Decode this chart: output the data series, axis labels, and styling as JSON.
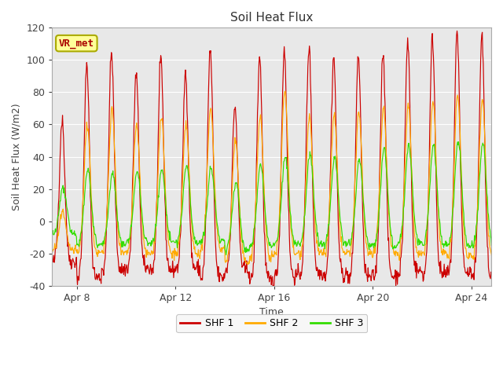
{
  "title": "Soil Heat Flux",
  "xlabel": "Time",
  "ylabel": "Soil Heat Flux (W/m2)",
  "ylim": [
    -40,
    120
  ],
  "legend_labels": [
    "SHF 1",
    "SHF 2",
    "SHF 3"
  ],
  "line_colors": [
    "#cc0000",
    "#ffaa00",
    "#33dd00"
  ],
  "fig_bg_color": "#ffffff",
  "plot_bg_color": "#e8e8e8",
  "annotation_text": "VR_met",
  "annotation_color": "#aa0000",
  "annotation_bg": "#ffff99",
  "annotation_border": "#aaaa00",
  "shf1_day_peaks": [
    63,
    96,
    104,
    91,
    100,
    92,
    106,
    72,
    102,
    106,
    108,
    102,
    103,
    105,
    111,
    114,
    117,
    115
  ],
  "shf1_night_troughs": [
    -25,
    -35,
    -30,
    -29,
    -30,
    -29,
    -35,
    -30,
    -37,
    -34,
    -32,
    -33,
    -35,
    -34,
    -31,
    -33,
    -32,
    -35
  ],
  "shf2_day_peaks": [
    5,
    60,
    70,
    60,
    65,
    60,
    70,
    50,
    65,
    82,
    65,
    65,
    68,
    70,
    72,
    75,
    78,
    75
  ],
  "shf2_night_troughs": [
    -18,
    -20,
    -20,
    -20,
    -20,
    -20,
    -17,
    -25,
    -22,
    -20,
    -20,
    -20,
    -20,
    -19,
    -20,
    -20,
    -22,
    -22
  ],
  "shf3_day_peaks": [
    21,
    32,
    30,
    31,
    32,
    34,
    33,
    25,
    35,
    40,
    42,
    40,
    38,
    45,
    47,
    47,
    50,
    49
  ],
  "shf3_night_troughs": [
    -8,
    -14,
    -14,
    -13,
    -13,
    -13,
    -12,
    -18,
    -15,
    -14,
    -14,
    -14,
    -15,
    -15,
    -13,
    -14,
    -15,
    -15
  ],
  "ytick_positions": [
    -40,
    -20,
    0,
    20,
    40,
    60,
    80,
    100,
    120
  ],
  "xtick_days": [
    1,
    5,
    9,
    13,
    17
  ],
  "xtick_labels": [
    "Apr 8",
    "Apr 12",
    "Apr 16",
    "Apr 20",
    "Apr 24"
  ],
  "grid_color": "#ffffff",
  "title_fontsize": 11,
  "label_fontsize": 9,
  "tick_fontsize": 9,
  "xlim": [
    0.0,
    17.8
  ]
}
